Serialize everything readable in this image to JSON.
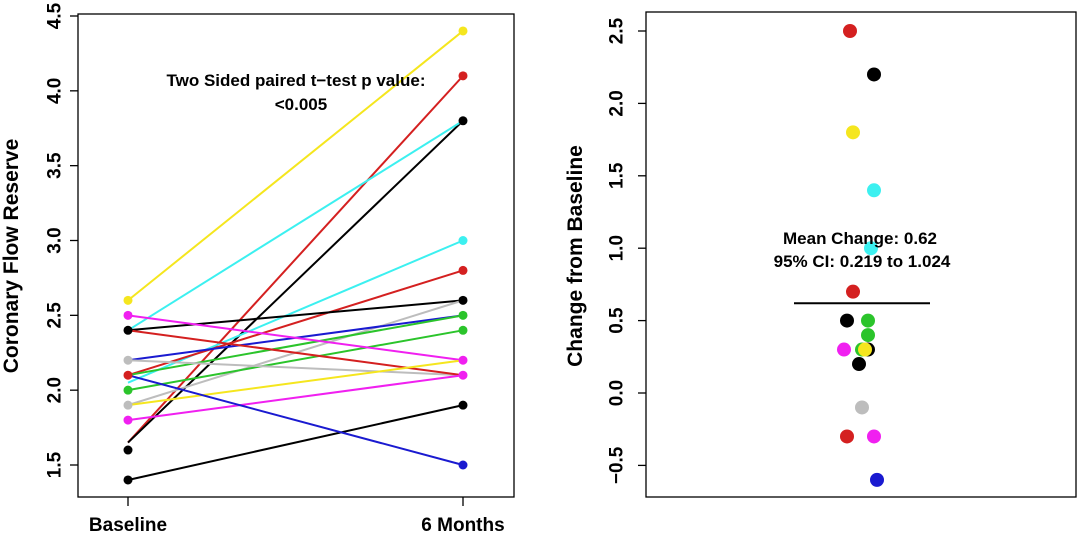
{
  "chart_data": [
    {
      "type": "line",
      "title": "",
      "xlabel": "",
      "ylabel": "Coronary Flow Reserve",
      "categories": [
        "Baseline",
        "6 Months"
      ],
      "ylim": [
        1.3,
        4.5
      ],
      "yticks": [
        "1.5",
        "2.0",
        "2.5",
        "3.0",
        "3.5",
        "4.0",
        "4.5"
      ],
      "annotation": [
        "Two Sided paired t−test p value:",
        "<0.005"
      ],
      "series": [
        {
          "name": "yellow-1",
          "color": "#f5e61e",
          "values": [
            2.6,
            4.4
          ]
        },
        {
          "name": "red-1",
          "color": "#d42020",
          "values": [
            1.65,
            4.1
          ]
        },
        {
          "name": "black-1",
          "color": "#000000",
          "values": [
            1.65,
            3.8
          ]
        },
        {
          "name": "cyan-1",
          "color": "#3cf0f0",
          "values": [
            2.4,
            3.8
          ]
        },
        {
          "name": "cyan-2",
          "color": "#3cf0f0",
          "values": [
            2.05,
            3.0
          ]
        },
        {
          "name": "red-2",
          "color": "#d42020",
          "values": [
            2.1,
            2.8
          ]
        },
        {
          "name": "black-2",
          "color": "#000000",
          "values": [
            2.4,
            2.6
          ]
        },
        {
          "name": "grey-1",
          "color": "#bdbdbd",
          "values": [
            1.9,
            2.6
          ]
        },
        {
          "name": "blue-1",
          "color": "#1a1ad0",
          "values": [
            2.2,
            2.5
          ]
        },
        {
          "name": "green-1",
          "color": "#2bc42b",
          "values": [
            2.1,
            2.5
          ]
        },
        {
          "name": "green-2",
          "color": "#2bc42b",
          "values": [
            2.0,
            2.4
          ]
        },
        {
          "name": "magenta-1",
          "color": "#f020f0",
          "values": [
            2.5,
            2.2
          ]
        },
        {
          "name": "grey-2",
          "color": "#bdbdbd",
          "values": [
            2.2,
            2.1
          ]
        },
        {
          "name": "red-3",
          "color": "#d42020",
          "values": [
            2.4,
            2.1
          ]
        },
        {
          "name": "yellow-2",
          "color": "#f5e61e",
          "values": [
            1.9,
            2.2
          ]
        },
        {
          "name": "magenta-2",
          "color": "#f020f0",
          "values": [
            1.8,
            2.1
          ]
        },
        {
          "name": "black-3",
          "color": "#000000",
          "values": [
            1.4,
            1.9
          ]
        },
        {
          "name": "blue-2",
          "color": "#1a1ad0",
          "values": [
            2.1,
            1.5
          ]
        }
      ],
      "points": [
        {
          "x": 0,
          "y": 2.6,
          "color": "#f5e61e"
        },
        {
          "x": 0,
          "y": 2.5,
          "color": "#f020f0"
        },
        {
          "x": 0,
          "y": 2.4,
          "color": "#000000"
        },
        {
          "x": 0,
          "y": 2.2,
          "color": "#bdbdbd"
        },
        {
          "x": 0,
          "y": 2.1,
          "color": "#d42020"
        },
        {
          "x": 0,
          "y": 2.0,
          "color": "#2bc42b"
        },
        {
          "x": 0,
          "y": 1.9,
          "color": "#bdbdbd"
        },
        {
          "x": 0,
          "y": 1.8,
          "color": "#f020f0"
        },
        {
          "x": 0,
          "y": 1.6,
          "color": "#000000"
        },
        {
          "x": 0,
          "y": 1.4,
          "color": "#000000"
        },
        {
          "x": 1,
          "y": 4.4,
          "color": "#f5e61e"
        },
        {
          "x": 1,
          "y": 4.1,
          "color": "#d42020"
        },
        {
          "x": 1,
          "y": 3.8,
          "color": "#000000"
        },
        {
          "x": 1,
          "y": 3.0,
          "color": "#3cf0f0"
        },
        {
          "x": 1,
          "y": 2.8,
          "color": "#d42020"
        },
        {
          "x": 1,
          "y": 2.6,
          "color": "#000000"
        },
        {
          "x": 1,
          "y": 2.5,
          "color": "#2bc42b"
        },
        {
          "x": 1,
          "y": 2.4,
          "color": "#2bc42b"
        },
        {
          "x": 1,
          "y": 2.2,
          "color": "#f020f0"
        },
        {
          "x": 1,
          "y": 2.1,
          "color": "#f020f0"
        },
        {
          "x": 1,
          "y": 1.9,
          "color": "#000000"
        },
        {
          "x": 1,
          "y": 1.5,
          "color": "#1a1ad0"
        }
      ]
    },
    {
      "type": "scatter",
      "title": "",
      "xlabel": "",
      "ylabel": "Change from Baseline",
      "ylim": [
        -0.65,
        2.6
      ],
      "yticks": [
        "−0.5",
        "0.0",
        "0.5",
        "1.0",
        "1.5",
        "2.0",
        "2.5"
      ],
      "annotation": [
        "Mean Change: 0.62",
        "95% CI:  0.219 to 1.024"
      ],
      "mean_change": 0.62,
      "ci": [
        0.219,
        1.024
      ],
      "points": [
        {
          "y": 2.5,
          "color": "#d42020",
          "jitter": -0.04
        },
        {
          "y": 2.2,
          "color": "#000000",
          "jitter": 0.04
        },
        {
          "y": 1.8,
          "color": "#f5e61e",
          "jitter": -0.03
        },
        {
          "y": 1.4,
          "color": "#3cf0f0",
          "jitter": 0.04
        },
        {
          "y": 1.0,
          "color": "#3cf0f0",
          "jitter": 0.03
        },
        {
          "y": 0.7,
          "color": "#d42020",
          "jitter": -0.03
        },
        {
          "y": 0.5,
          "color": "#000000",
          "jitter": -0.05
        },
        {
          "y": 0.5,
          "color": "#2bc42b",
          "jitter": 0.02
        },
        {
          "y": 0.4,
          "color": "#2bc42b",
          "jitter": 0.02
        },
        {
          "y": 0.3,
          "color": "#f020f0",
          "jitter": -0.06
        },
        {
          "y": 0.3,
          "color": "#2bc42b",
          "jitter": 0.0
        },
        {
          "y": 0.3,
          "color": "#000000",
          "jitter": 0.02
        },
        {
          "y": 0.3,
          "color": "#f5e61e",
          "jitter": 0.01
        },
        {
          "y": 0.2,
          "color": "#000000",
          "jitter": -0.01
        },
        {
          "y": -0.1,
          "color": "#bdbdbd",
          "jitter": 0.0
        },
        {
          "y": -0.3,
          "color": "#d42020",
          "jitter": -0.05
        },
        {
          "y": -0.3,
          "color": "#f020f0",
          "jitter": 0.04
        },
        {
          "y": -0.6,
          "color": "#1a1ad0",
          "jitter": 0.05
        }
      ]
    }
  ]
}
